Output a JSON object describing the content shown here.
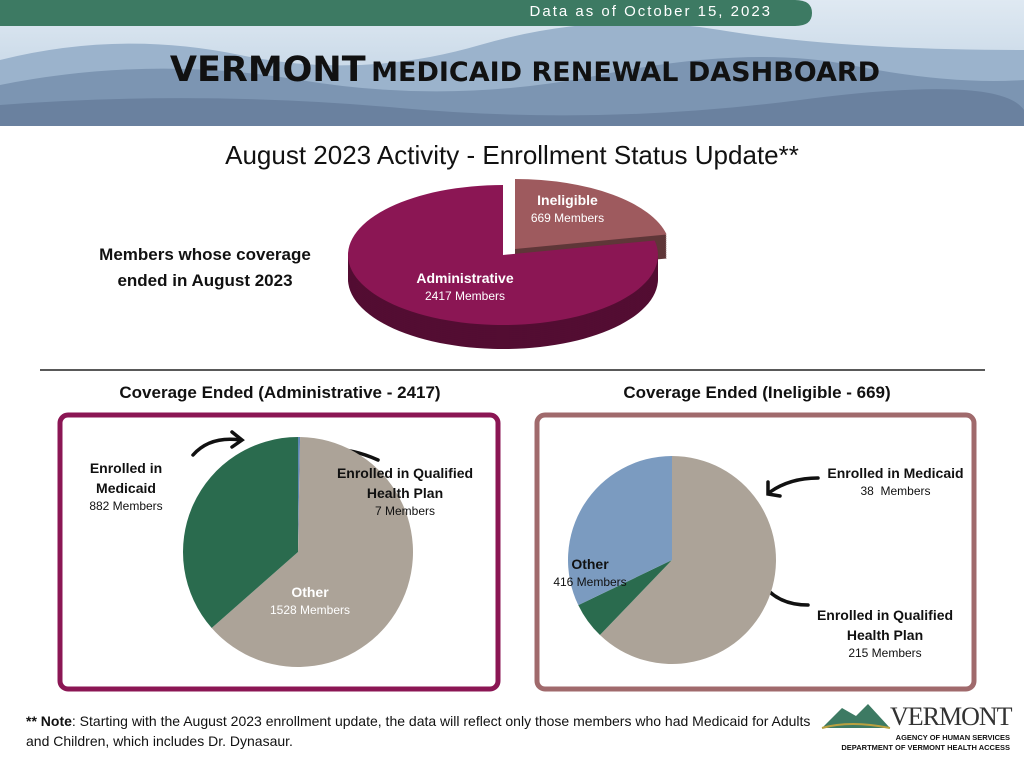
{
  "header": {
    "date_banner": "Data as of October 15, 2023",
    "title_bold": "VERMONT",
    "title_rest": "MEDICAID RENEWAL DASHBOARD"
  },
  "chart_data": [
    {
      "type": "pie3d",
      "title": "August 2023 Activity - Enrollment Status Update**",
      "subtitle": "Members whose coverage ended in August 2023",
      "categories": [
        "Ineligible",
        "Administrative"
      ],
      "values": [
        669,
        2417
      ],
      "value_labels": [
        "669 Members",
        "2417 Members"
      ],
      "colors": [
        "#9e5a5e",
        "#8b1654"
      ]
    },
    {
      "type": "pie",
      "title": "Coverage Ended (Administrative - 2417)",
      "categories": [
        "Enrolled in Qualified Health Plan",
        "Other",
        "Enrolled in Medicaid"
      ],
      "values": [
        7,
        1528,
        882
      ],
      "value_labels": [
        "7 Members",
        "1528 Members",
        "882 Members"
      ],
      "colors": [
        "#5f87b5",
        "#aca398",
        "#2a6b4e"
      ]
    },
    {
      "type": "pie",
      "title": "Coverage Ended (Ineligible - 669)",
      "categories": [
        "Other",
        "Enrolled in Medicaid",
        "Enrolled in Qualified Health Plan"
      ],
      "values": [
        416,
        38,
        215
      ],
      "value_labels": [
        "416 Members",
        "38  Members",
        "215 Members"
      ],
      "colors": [
        "#aca398",
        "#2a6b4e",
        "#7b9bc0"
      ]
    }
  ],
  "note": {
    "label": "** Note",
    "text": ": Starting with the August 2023 enrollment update, the data will reflect only those members who had Medicaid for Adults and Children, which includes Dr. Dynasaur."
  },
  "logo": {
    "name": "VERMONT",
    "line1": "AGENCY OF HUMAN SERVICES",
    "line2": "DEPARTMENT OF VERMONT HEALTH ACCESS"
  }
}
